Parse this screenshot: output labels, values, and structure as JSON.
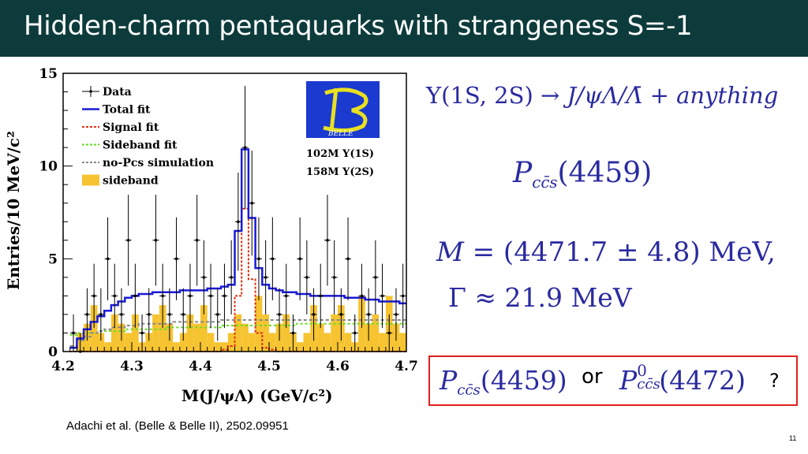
{
  "slide": {
    "title": "Hidden-charm pentaquarks with strangeness S=-1",
    "citation": "Adachi et al. (Belle & Belle II), 2502.09951",
    "page_number": "11"
  },
  "figure": {
    "logo_text": "BELLE",
    "sample_1": "102M Υ(1S)",
    "sample_2": "158M Υ(2S)"
  },
  "equations": {
    "decay_lhs": "Υ(1S, 2S)",
    "decay_arrow": "→",
    "decay_rhs": "J/ψΛ/Λ̄ + anything",
    "state_symbol": "P",
    "state_subscript": "cc̄s",
    "state_mass": "(4459)",
    "mass_label": "M",
    "mass_value": "= (4471.7 ± 4.8) MeV,",
    "width_label": "Γ",
    "width_value": "≈ 21.9 MeV"
  },
  "question_box": {
    "option_1_symbol": "P",
    "option_1_subscript": "cc̄s",
    "option_1_mass": "(4459)",
    "or_text": "or",
    "option_2_symbol": "P",
    "option_2_superscript": "0",
    "option_2_subscript": "cc̄s",
    "option_2_mass": "(4472)",
    "question_mark": "?"
  },
  "chart_data": {
    "type": "bar",
    "xlabel": "M(J/ψΛ) (GeV/c²)",
    "ylabel": "Entries/10 MeV/c²",
    "xlim": [
      4.2,
      4.7
    ],
    "ylim": [
      0,
      15
    ],
    "xticks": [
      "4.2",
      "4.3",
      "4.4",
      "4.5",
      "4.6",
      "4.7"
    ],
    "yticks": [
      "0",
      "5",
      "10",
      "15"
    ],
    "legend": [
      "Data",
      "Total fit",
      "Signal fit",
      "Sideband fit",
      "no-Pcs simulation",
      "sideband"
    ],
    "legend_position": "top-left",
    "bin_width": 0.01,
    "x": [
      4.215,
      4.225,
      4.235,
      4.245,
      4.255,
      4.265,
      4.275,
      4.285,
      4.295,
      4.305,
      4.315,
      4.325,
      4.335,
      4.345,
      4.355,
      4.365,
      4.375,
      4.385,
      4.395,
      4.405,
      4.415,
      4.425,
      4.435,
      4.445,
      4.455,
      4.465,
      4.475,
      4.485,
      4.495,
      4.505,
      4.515,
      4.525,
      4.535,
      4.545,
      4.555,
      4.565,
      4.575,
      4.585,
      4.595,
      4.605,
      4.615,
      4.625,
      4.635,
      4.645,
      4.655,
      4.665,
      4.675,
      4.685,
      4.695
    ],
    "series": [
      {
        "name": "Data",
        "values": [
          1,
          0,
          2,
          3,
          2,
          5,
          3,
          2,
          6,
          3,
          1,
          2,
          6,
          3,
          2,
          5,
          2,
          3,
          6,
          4,
          3,
          2,
          3,
          4,
          7,
          11,
          8,
          5,
          4,
          5,
          2,
          3,
          1,
          5,
          4,
          2,
          3,
          6,
          4,
          2,
          5,
          1,
          3,
          2,
          4,
          3,
          1,
          2,
          3
        ]
      },
      {
        "name": "Total fit",
        "values": [
          0.2,
          0.7,
          1.2,
          1.6,
          1.9,
          2.2,
          2.5,
          2.7,
          2.9,
          3.0,
          3.1,
          3.1,
          3.2,
          3.2,
          3.2,
          3.2,
          3.3,
          3.3,
          3.3,
          3.3,
          3.4,
          3.4,
          3.5,
          3.6,
          6.5,
          10.9,
          7.2,
          4.5,
          3.6,
          3.4,
          3.3,
          3.2,
          3.2,
          3.1,
          3.1,
          3.0,
          3.0,
          3.0,
          3.0,
          3.0,
          2.9,
          2.9,
          2.9,
          2.8,
          2.8,
          2.7,
          2.7,
          2.7,
          2.6
        ]
      },
      {
        "name": "Signal fit",
        "values": [
          0,
          0,
          0,
          0,
          0,
          0,
          0,
          0,
          0,
          0,
          0,
          0,
          0,
          0,
          0,
          0,
          0,
          0,
          0,
          0,
          0,
          0,
          0.1,
          0.3,
          3.0,
          7.7,
          3.9,
          1.0,
          0.2,
          0.1,
          0,
          0,
          0,
          0,
          0,
          0,
          0,
          0,
          0,
          0,
          0,
          0,
          0,
          0,
          0,
          0,
          0,
          0,
          0
        ]
      },
      {
        "name": "Sideband fit",
        "values": [
          0.9,
          1.0,
          1.0,
          1.0,
          1.1,
          1.1,
          1.1,
          1.1,
          1.2,
          1.2,
          1.2,
          1.2,
          1.2,
          1.2,
          1.3,
          1.3,
          1.3,
          1.3,
          1.3,
          1.3,
          1.3,
          1.3,
          1.4,
          1.4,
          1.4,
          1.4,
          1.4,
          1.4,
          1.4,
          1.4,
          1.4,
          1.4,
          1.4,
          1.5,
          1.5,
          1.5,
          1.5,
          1.5,
          1.5,
          1.5,
          1.5,
          1.5,
          1.5,
          1.5,
          1.5,
          1.5,
          1.5,
          1.5,
          1.5
        ]
      },
      {
        "name": "no-Pcs simulation",
        "values": [
          0.3,
          0.6,
          0.8,
          1.0,
          1.1,
          1.2,
          1.3,
          1.3,
          1.4,
          1.4,
          1.5,
          1.5,
          1.5,
          1.5,
          1.5,
          1.6,
          1.6,
          1.6,
          1.6,
          1.6,
          1.6,
          1.6,
          1.7,
          1.7,
          1.7,
          1.7,
          1.7,
          1.7,
          1.7,
          1.7,
          1.7,
          1.7,
          1.7,
          1.7,
          1.7,
          1.7,
          1.7,
          1.7,
          1.7,
          1.7,
          1.7,
          1.7,
          1.7,
          1.7,
          1.7,
          1.7,
          1.7,
          1.7,
          1.7
        ]
      },
      {
        "name": "sideband",
        "values": [
          0,
          1.0,
          1.5,
          2.5,
          1.0,
          0.5,
          2.0,
          1.5,
          1.0,
          2.0,
          0.5,
          1.0,
          2.0,
          2.5,
          1.5,
          0.5,
          1.0,
          2.0,
          1.5,
          2.5,
          1.0,
          0.5,
          0.5,
          1.0,
          2.0,
          1.5,
          1.0,
          3.0,
          2.0,
          1.0,
          1.5,
          2.0,
          1.0,
          0.5,
          1.0,
          2.5,
          1.5,
          1.0,
          2.0,
          2.5,
          1.0,
          0.5,
          3.0,
          1.5,
          2.0,
          1.0,
          3.0,
          1.5,
          1.0
        ]
      }
    ],
    "colors": {
      "Data": "#000000",
      "Total fit": "#1a1ad8",
      "Signal fit": "#e03010",
      "Sideband fit": "#66dd22",
      "no-Pcs simulation": "#888888",
      "sideband": "#f6c431"
    }
  }
}
